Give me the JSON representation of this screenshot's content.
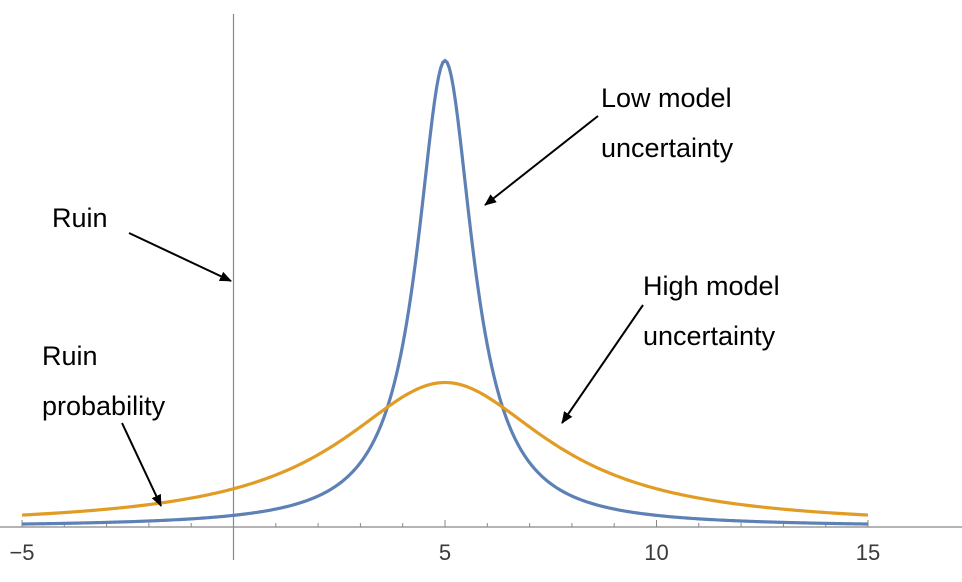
{
  "chart_data": {
    "type": "line",
    "title": "",
    "xlabel": "",
    "ylabel": "",
    "xlim": [
      -5,
      15
    ],
    "ylim": [
      0,
      1.0
    ],
    "grid": false,
    "x_tick_labels": [
      "−5",
      "5",
      "10",
      "15"
    ],
    "x_tick_values": [
      -5,
      5,
      10,
      15
    ],
    "vertical_line_x": 0,
    "series": [
      {
        "color": "#5E81B5",
        "curve": "lorentzian",
        "center": 5,
        "half_width": 0.8,
        "peak": 0.92
      },
      {
        "color": "#E19C24",
        "curve": "lorentzian",
        "center": 5,
        "half_width": 3.0,
        "peak": 0.285
      }
    ],
    "annotations": [
      {
        "lines": [
          "Low model",
          "uncertainty"
        ],
        "target_series": 0,
        "target_x": 5.9
      },
      {
        "lines": [
          "Ruin"
        ],
        "target_x": 0
      },
      {
        "lines": [
          "High model",
          "uncertainty"
        ],
        "target_series": 1,
        "target_x": 7.8
      },
      {
        "lines": [
          "Ruin",
          "probability"
        ],
        "target_series": 1,
        "target_x": -1.8
      }
    ]
  }
}
